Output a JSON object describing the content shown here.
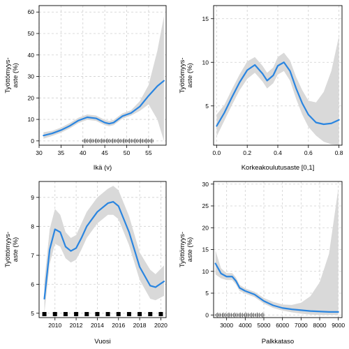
{
  "figure": {
    "panels_note": "",
    "colors": {
      "line": "#2a85e0",
      "band": "#d9d9d9",
      "grid": "#cfcfcf",
      "axis": "#000000"
    }
  },
  "chart_data": [
    {
      "type": "line",
      "ylabel_lines": [
        "Työttömyys-",
        "aste (%)"
      ],
      "xlabel": "Ikä (v)",
      "xlim": [
        30,
        59
      ],
      "ylim": [
        -2,
        63
      ],
      "xticks": [
        30,
        35,
        40,
        45,
        50,
        55
      ],
      "yticks": [
        0,
        10,
        20,
        30,
        40,
        50,
        60
      ],
      "grid": true,
      "series": [
        {
          "x": [
            31,
            33,
            35,
            37,
            39,
            41,
            43,
            45,
            46,
            47,
            49,
            51,
            53,
            55,
            57,
            58.5
          ],
          "values": [
            2.5,
            3.5,
            5,
            7,
            9.5,
            11,
            10.5,
            8.5,
            8,
            8.5,
            11.5,
            13,
            16,
            21,
            25.5,
            28
          ],
          "lower": [
            1,
            2.3,
            3.8,
            5.8,
            8.3,
            9.8,
            9.3,
            7.3,
            6.8,
            7.3,
            10.3,
            11.8,
            14,
            17,
            10,
            0
          ],
          "upper": [
            4,
            4.7,
            6.2,
            8.3,
            10.8,
            12.3,
            11.8,
            9.8,
            9.3,
            9.8,
            12.8,
            14.3,
            18.5,
            26,
            42,
            58
          ]
        }
      ],
      "rug": {
        "style": "ticks",
        "range": [
          40,
          56
        ]
      }
    },
    {
      "type": "line",
      "ylabel_lines": [
        "Työttömyys-",
        "aste (%)"
      ],
      "xlabel": "Korkeakoulutusaste [0,1]",
      "xlim": [
        -0.02,
        0.82
      ],
      "ylim": [
        0.5,
        16.5
      ],
      "xticks": [
        0.0,
        0.2,
        0.4,
        0.6,
        0.8
      ],
      "xtick_labels": [
        "0.0",
        "0.2",
        "0.4",
        "0.6",
        "0.8"
      ],
      "yticks": [
        5,
        10,
        15
      ],
      "grid": true,
      "series": [
        {
          "x": [
            0.0,
            0.05,
            0.1,
            0.15,
            0.2,
            0.25,
            0.3,
            0.33,
            0.37,
            0.4,
            0.44,
            0.48,
            0.52,
            0.56,
            0.6,
            0.65,
            0.7,
            0.75,
            0.8
          ],
          "values": [
            2.7,
            4.2,
            6.0,
            7.7,
            9.1,
            9.7,
            8.7,
            7.9,
            8.5,
            9.6,
            10.0,
            9.0,
            7.0,
            5.3,
            4.0,
            3.1,
            2.9,
            3.0,
            3.4
          ],
          "lower": [
            1.5,
            3.3,
            5.1,
            6.8,
            8.1,
            8.8,
            7.8,
            7.0,
            7.6,
            8.6,
            9.0,
            7.9,
            5.8,
            4.0,
            2.6,
            1.6,
            0.9,
            0.6,
            0.5
          ],
          "upper": [
            4.0,
            5.1,
            6.9,
            8.6,
            10.1,
            10.6,
            9.6,
            8.8,
            9.4,
            10.6,
            11.1,
            10.2,
            8.3,
            6.8,
            5.6,
            5.4,
            6.6,
            9.0,
            13.0
          ]
        }
      ],
      "rug": {
        "style": "ticks",
        "range": [
          0.0,
          0.8
        ]
      }
    },
    {
      "type": "line",
      "ylabel_lines": [
        "Työttömyys-",
        "aste (%)"
      ],
      "xlabel": "Vuosi",
      "xlim": [
        2008.5,
        2020.5
      ],
      "ylim": [
        4.85,
        9.55
      ],
      "xticks": [
        2010,
        2012,
        2014,
        2016,
        2018,
        2020
      ],
      "yticks": [
        5,
        6,
        7,
        8,
        9
      ],
      "grid": true,
      "series": [
        {
          "x": [
            2009,
            2009.5,
            2010,
            2010.5,
            2011,
            2011.5,
            2012,
            2012.5,
            2013,
            2014,
            2015,
            2015.5,
            2016,
            2017,
            2018,
            2019,
            2019.5,
            2020.3
          ],
          "values": [
            5.5,
            7.2,
            7.9,
            7.8,
            7.3,
            7.15,
            7.25,
            7.6,
            8.0,
            8.5,
            8.8,
            8.85,
            8.7,
            7.8,
            6.6,
            5.95,
            5.9,
            6.1
          ],
          "lower": [
            5.0,
            6.7,
            7.4,
            7.3,
            6.9,
            6.75,
            6.85,
            7.2,
            7.6,
            8.1,
            8.4,
            8.4,
            8.25,
            7.35,
            6.15,
            5.5,
            5.45,
            5.6
          ],
          "upper": [
            6.1,
            7.9,
            8.6,
            8.4,
            7.8,
            7.6,
            7.7,
            8.1,
            8.5,
            9.0,
            9.3,
            9.4,
            9.25,
            8.35,
            7.1,
            6.5,
            6.35,
            6.65
          ]
        }
      ],
      "rug": {
        "style": "blocks",
        "x": [
          2009,
          2010,
          2011,
          2012,
          2013,
          2014,
          2015,
          2016,
          2017,
          2018,
          2019,
          2020
        ]
      }
    },
    {
      "type": "line",
      "ylabel_lines": [
        "Työttömyys-",
        "aste (%)"
      ],
      "xlabel": "Palkkataso",
      "xlim": [
        2300,
        9200
      ],
      "ylim": [
        -0.6,
        30.6
      ],
      "xticks": [
        3000,
        4000,
        5000,
        6000,
        7000,
        8000,
        9000
      ],
      "yticks": [
        0,
        5,
        10,
        15,
        20,
        25,
        30
      ],
      "grid": true,
      "series": [
        {
          "x": [
            2400,
            2700,
            3000,
            3300,
            3500,
            3700,
            4000,
            4500,
            5000,
            5500,
            6000,
            6500,
            7000,
            7500,
            8000,
            8500,
            9000
          ],
          "values": [
            11.8,
            9.5,
            8.8,
            8.8,
            7.8,
            6.2,
            5.5,
            4.7,
            3.2,
            2.2,
            1.6,
            1.3,
            1.1,
            0.9,
            0.8,
            0.7,
            0.7
          ],
          "lower": [
            9.3,
            8.4,
            8.0,
            8.0,
            7.0,
            5.5,
            4.9,
            4.1,
            2.6,
            1.6,
            1.0,
            0.6,
            0.3,
            0.1,
            0,
            0,
            0
          ],
          "upper": [
            14.8,
            10.7,
            9.6,
            9.6,
            8.6,
            6.9,
            6.1,
            5.3,
            3.9,
            3.0,
            2.4,
            2.3,
            2.8,
            4.3,
            7.5,
            14.0,
            29.0
          ]
        }
      ],
      "rug": {
        "style": "ticks",
        "range": [
          2400,
          5000
        ]
      }
    }
  ]
}
